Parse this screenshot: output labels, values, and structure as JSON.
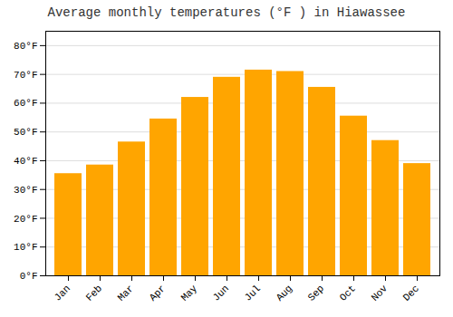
{
  "chart_data": {
    "type": "bar",
    "title": "Average monthly temperatures (°F ) in Hiawassee",
    "categories": [
      "Jan",
      "Feb",
      "Mar",
      "Apr",
      "May",
      "Jun",
      "Jul",
      "Aug",
      "Sep",
      "Oct",
      "Nov",
      "Dec"
    ],
    "values": [
      35.5,
      38.5,
      46.5,
      54.5,
      62,
      69,
      71.5,
      71,
      65.5,
      55.5,
      47,
      39
    ],
    "color": "#FFA500",
    "ylim": [
      0,
      85
    ],
    "yticks": [
      {
        "value": 0,
        "label": "0°F"
      },
      {
        "value": 10,
        "label": "10°F"
      },
      {
        "value": 20,
        "label": "20°F"
      },
      {
        "value": 30,
        "label": "30°F"
      },
      {
        "value": 40,
        "label": "40°F"
      },
      {
        "value": 50,
        "label": "50°F"
      },
      {
        "value": 60,
        "label": "60°F"
      },
      {
        "value": 70,
        "label": "70°F"
      },
      {
        "value": 80,
        "label": "80°F"
      }
    ],
    "grid": true
  }
}
